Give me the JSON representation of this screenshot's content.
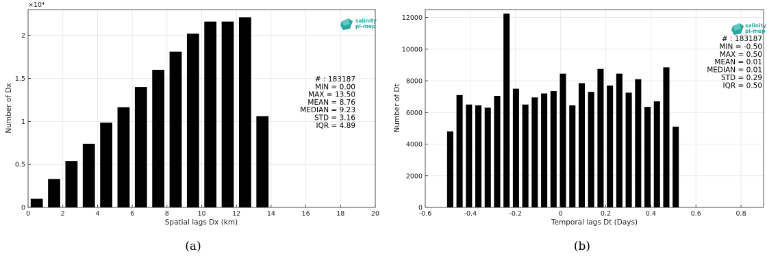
{
  "colors": {
    "bar": "#000000",
    "grid": "#e6e6e6",
    "logo": "#2aa6a0"
  },
  "logo": {
    "line1": "salinity",
    "line2": "pi-mep"
  },
  "chart_data": [
    {
      "type": "bar",
      "caption": "(a)",
      "xlabel": "Spatial lags Dx (km)",
      "ylabel": "Number of Dx",
      "exponent_label": "×10⁴",
      "xlim": [
        0,
        20
      ],
      "ylim": [
        0,
        23000
      ],
      "xticks": [
        0,
        2,
        4,
        6,
        8,
        10,
        12,
        14,
        16,
        18,
        20
      ],
      "xtick_labels": [
        "0",
        "2",
        "4",
        "6",
        "8",
        "10",
        "12",
        "14",
        "16",
        "18",
        "20"
      ],
      "yticks": [
        0,
        5000,
        10000,
        15000,
        20000
      ],
      "ytick_labels": [
        "0",
        "0.5",
        "1",
        "1.5",
        "2"
      ],
      "bar_width": 0.7,
      "x": [
        0.5,
        1.5,
        2.5,
        3.5,
        4.5,
        5.5,
        6.5,
        7.5,
        8.5,
        9.5,
        10.5,
        11.5,
        12.5,
        13.5
      ],
      "values": [
        1000,
        3300,
        5400,
        7400,
        9850,
        11650,
        14000,
        16000,
        18100,
        20200,
        21600,
        21600,
        22100,
        10600
      ],
      "grid": true,
      "stats": [
        "# : 183187",
        "MIN = 0.00",
        "MAX =  13.50",
        "MEAN = 8.76",
        "MEDIAN = 9.23",
        "STD = 3.16",
        "IQR = 4.89"
      ]
    },
    {
      "type": "bar",
      "caption": "(b)",
      "xlabel": "Temporal lags Dt (Days)",
      "ylabel": "Number of Dt",
      "xlim": [
        -0.6,
        0.9
      ],
      "ylim": [
        0,
        12500
      ],
      "xticks": [
        -0.6,
        -0.4,
        -0.2,
        0,
        0.2,
        0.4,
        0.6,
        0.8
      ],
      "xtick_labels": [
        "-0.6",
        "-0.4",
        "-0.2",
        "0",
        "0.2",
        "0.4",
        "0.6",
        "0.8"
      ],
      "yticks": [
        0,
        2000,
        4000,
        6000,
        8000,
        10000,
        12000
      ],
      "ytick_labels": [
        "0",
        "2000",
        "4000",
        "6000",
        "8000",
        "10000",
        "12000"
      ],
      "bar_width": 0.0275,
      "x": [
        -0.4896,
        -0.4479,
        -0.4062,
        -0.3646,
        -0.3229,
        -0.2812,
        -0.2396,
        -0.1979,
        -0.1562,
        -0.1146,
        -0.0729,
        -0.0312,
        0.0104,
        0.0521,
        0.0938,
        0.1354,
        0.1771,
        0.2188,
        0.2604,
        0.3021,
        0.3438,
        0.3854,
        0.4271,
        0.4688,
        0.5104
      ],
      "values": [
        4800,
        7100,
        6500,
        6450,
        6300,
        7050,
        12250,
        7500,
        6500,
        6950,
        7200,
        7350,
        8450,
        6450,
        7850,
        7300,
        8750,
        7700,
        8450,
        7250,
        8100,
        6350,
        6700,
        8850,
        5100
      ],
      "grid": true,
      "stats": [
        "# : 183187",
        "MIN = -0.50",
        "MAX =  0.50",
        "MEAN = 0.01",
        "MEDIAN = 0.01",
        "STD = 0.29",
        "IQR = 0.50"
      ]
    }
  ]
}
